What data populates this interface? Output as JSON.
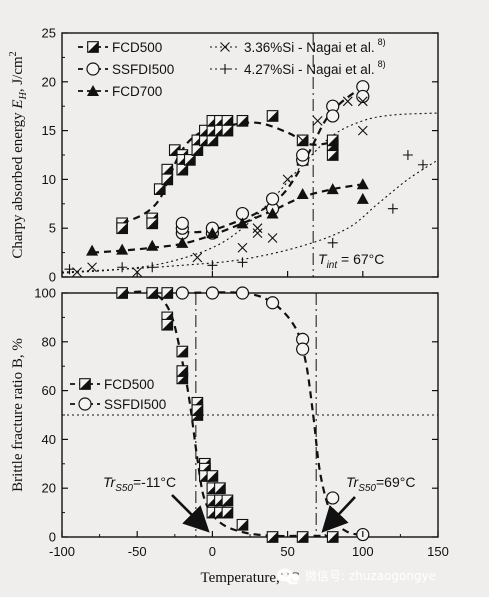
{
  "chart_data": [
    {
      "type": "scatter",
      "xlim": [
        -100,
        150
      ],
      "ylim": [
        0,
        25
      ],
      "yticks": [
        0,
        5,
        10,
        15,
        20,
        25
      ],
      "ylabel_main": "Charpy absorbed energy ",
      "ylabel_sym": "E",
      "ylabel_sub": "H",
      "ylabel_unit": ", J/cm",
      "ylabel_sup": "2",
      "grid": false,
      "legend_position": "top",
      "legend": [
        {
          "label": "FCD500",
          "marker": "halfsquare"
        },
        {
          "label": "SSFDI500",
          "marker": "circle"
        },
        {
          "label": "FCD700",
          "marker": "triangle"
        },
        {
          "label": "3.36%Si - Nagai et al.",
          "marker": "x",
          "ref": "8)"
        },
        {
          "label": "4.27%Si - Nagai et al.",
          "marker": "plus",
          "ref": "8)"
        }
      ],
      "series": [
        {
          "name": "FCD500",
          "marker": "halfsquare",
          "points": [
            [
              -60,
              5.5
            ],
            [
              -60,
              5
            ],
            [
              -40,
              6
            ],
            [
              -40,
              5.5
            ],
            [
              -35,
              9
            ],
            [
              -30,
              11
            ],
            [
              -30,
              10
            ],
            [
              -25,
              13
            ],
            [
              -20,
              12.5
            ],
            [
              -20,
              12
            ],
            [
              -20,
              11
            ],
            [
              -15,
              12
            ],
            [
              -10,
              14
            ],
            [
              -10,
              13
            ],
            [
              -5,
              14
            ],
            [
              -5,
              15
            ],
            [
              0,
              14
            ],
            [
              0,
              15
            ],
            [
              0,
              16
            ],
            [
              5,
              16
            ],
            [
              5,
              15
            ],
            [
              10,
              16
            ],
            [
              10,
              15
            ],
            [
              20,
              16
            ],
            [
              40,
              16.5
            ],
            [
              60,
              14
            ],
            [
              60,
              12
            ],
            [
              80,
              12.5
            ],
            [
              80,
              13.5
            ],
            [
              80,
              14
            ]
          ]
        },
        {
          "name": "SSFDI500",
          "marker": "circle",
          "points": [
            [
              -20,
              4.5
            ],
            [
              -20,
              5
            ],
            [
              -20,
              5.5
            ],
            [
              0,
              4.5
            ],
            [
              0,
              5
            ],
            [
              20,
              6.5
            ],
            [
              40,
              7
            ],
            [
              40,
              8
            ],
            [
              60,
              12
            ],
            [
              60,
              12.5
            ],
            [
              80,
              17.5
            ],
            [
              80,
              16.5
            ],
            [
              100,
              19.5
            ],
            [
              100,
              18.5
            ]
          ]
        },
        {
          "name": "FCD700",
          "marker": "triangle",
          "points": [
            [
              -80,
              2.7
            ],
            [
              -60,
              2.8
            ],
            [
              -40,
              3.2
            ],
            [
              -20,
              3.5
            ],
            [
              0,
              4.5
            ],
            [
              20,
              5.5
            ],
            [
              40,
              6.5
            ],
            [
              60,
              8.5
            ],
            [
              80,
              9
            ],
            [
              100,
              9.5
            ],
            [
              100,
              8
            ]
          ]
        },
        {
          "name": "3.36%Si - Nagai et al.",
          "marker": "x",
          "points": [
            [
              -90,
              0.5
            ],
            [
              -80,
              1
            ],
            [
              -50,
              0.5
            ],
            [
              -10,
              2
            ],
            [
              20,
              3
            ],
            [
              30,
              5
            ],
            [
              30,
              4.5
            ],
            [
              40,
              4
            ],
            [
              50,
              10
            ],
            [
              60,
              14
            ],
            [
              70,
              16
            ],
            [
              90,
              18
            ],
            [
              100,
              18
            ],
            [
              100,
              15
            ]
          ]
        },
        {
          "name": "4.27%Si - Nagai et al.",
          "marker": "plus",
          "points": [
            [
              -95,
              0.8
            ],
            [
              -60,
              1
            ],
            [
              -40,
              1
            ],
            [
              0,
              1.2
            ],
            [
              20,
              1.5
            ],
            [
              80,
              3.5
            ],
            [
              120,
              7
            ],
            [
              130,
              12.5
            ],
            [
              140,
              11.5
            ]
          ]
        }
      ],
      "curves": [
        {
          "name": "FCD500 fit",
          "style": "dashed",
          "points": [
            [
              -60,
              5.5
            ],
            [
              -45,
              6.5
            ],
            [
              -35,
              8
            ],
            [
              -28,
              10.5
            ],
            [
              -22,
              12.5
            ],
            [
              -15,
              14
            ],
            [
              -5,
              15
            ],
            [
              10,
              15.5
            ],
            [
              30,
              15.8
            ],
            [
              50,
              14.8
            ],
            [
              65,
              13.6
            ],
            [
              80,
              13.8
            ]
          ]
        },
        {
          "name": "SSFDI500 fit",
          "style": "dashed",
          "points": [
            [
              -20,
              4.6
            ],
            [
              -10,
              4.6
            ],
            [
              0,
              4.8
            ],
            [
              15,
              5.6
            ],
            [
              30,
              6.6
            ],
            [
              45,
              8.2
            ],
            [
              55,
              10.2
            ],
            [
              65,
              13
            ],
            [
              75,
              16
            ],
            [
              85,
              17.8
            ],
            [
              100,
              19.5
            ]
          ]
        },
        {
          "name": "FCD700 fit",
          "style": "dashed",
          "points": [
            [
              -80,
              2.5
            ],
            [
              -60,
              2.7
            ],
            [
              -40,
              3
            ],
            [
              -20,
              3.4
            ],
            [
              0,
              4.3
            ],
            [
              20,
              5.5
            ],
            [
              40,
              6.8
            ],
            [
              60,
              8.2
            ],
            [
              80,
              9
            ],
            [
              100,
              9.5
            ]
          ]
        },
        {
          "name": "3.36%Si fit",
          "style": "dotted",
          "points": [
            [
              -100,
              0.4
            ],
            [
              -60,
              0.8
            ],
            [
              -30,
              1.5
            ],
            [
              0,
              3
            ],
            [
              20,
              5
            ],
            [
              40,
              8
            ],
            [
              60,
              11.5
            ],
            [
              80,
              14.5
            ],
            [
              100,
              16
            ],
            [
              120,
              16.6
            ],
            [
              150,
              16.8
            ]
          ]
        },
        {
          "name": "4.27%Si fit",
          "style": "dotted",
          "points": [
            [
              -100,
              0.5
            ],
            [
              -60,
              0.8
            ],
            [
              -20,
              1.2
            ],
            [
              20,
              1.8
            ],
            [
              60,
              3.2
            ],
            [
              90,
              5
            ],
            [
              110,
              7.5
            ],
            [
              130,
              10
            ],
            [
              150,
              12
            ]
          ]
        }
      ],
      "reference_lines": [
        {
          "orientation": "vertical",
          "x": 67,
          "style": "dash-dot"
        }
      ],
      "annotations": [
        {
          "prefix": "T",
          "sub": "int",
          "suffix": " = 67°C",
          "x": 67,
          "y": 1.5
        }
      ]
    },
    {
      "type": "scatter",
      "xlim": [
        -100,
        150
      ],
      "ylim": [
        0,
        100
      ],
      "yticks": [
        0,
        20,
        40,
        60,
        80,
        100
      ],
      "xticks": [
        -100,
        -50,
        0,
        50,
        100,
        150
      ],
      "ylabel": "Brittle fracture ratio B, %",
      "xlabel": "Temperature, °C",
      "grid": false,
      "legend_position": "middle-left",
      "legend": [
        {
          "label": "FCD500",
          "marker": "halfsquare"
        },
        {
          "label": "SSFDI500",
          "marker": "circle"
        }
      ],
      "series": [
        {
          "name": "FCD500",
          "marker": "halfsquare",
          "points": [
            [
              -60,
              100
            ],
            [
              -40,
              100
            ],
            [
              -30,
              100
            ],
            [
              -30,
              90
            ],
            [
              -30,
              87
            ],
            [
              -20,
              76
            ],
            [
              -20,
              65
            ],
            [
              -20,
              68
            ],
            [
              -10,
              55
            ],
            [
              -10,
              50
            ],
            [
              -10,
              52
            ],
            [
              -5,
              30
            ],
            [
              -5,
              28
            ],
            [
              -5,
              25
            ],
            [
              0,
              25
            ],
            [
              0,
              20
            ],
            [
              0,
              15
            ],
            [
              0,
              10
            ],
            [
              5,
              20
            ],
            [
              5,
              15
            ],
            [
              5,
              10
            ],
            [
              10,
              15
            ],
            [
              10,
              10
            ],
            [
              20,
              5
            ],
            [
              40,
              0
            ],
            [
              60,
              0
            ],
            [
              80,
              0
            ]
          ]
        },
        {
          "name": "SSFDI500",
          "marker": "circle",
          "points": [
            [
              -20,
              100
            ],
            [
              0,
              100
            ],
            [
              20,
              100
            ],
            [
              40,
              96
            ],
            [
              60,
              81
            ],
            [
              60,
              77
            ],
            [
              80,
              16
            ],
            [
              100,
              1
            ]
          ]
        }
      ],
      "curves": [
        {
          "name": "FCD500 fit",
          "style": "dashed",
          "points": [
            [
              -60,
              100
            ],
            [
              -40,
              100
            ],
            [
              -28,
              92
            ],
            [
              -20,
              72
            ],
            [
              -15,
              55
            ],
            [
              -10,
              32
            ],
            [
              -5,
              15
            ],
            [
              5,
              6
            ],
            [
              20,
              2
            ],
            [
              40,
              0.5
            ],
            [
              60,
              0.5
            ],
            [
              80,
              0.5
            ]
          ]
        },
        {
          "name": "SSFDI500 fit",
          "style": "dashed",
          "points": [
            [
              -20,
              100
            ],
            [
              20,
              100
            ],
            [
              40,
              96
            ],
            [
              55,
              86
            ],
            [
              62,
              72
            ],
            [
              67,
              50
            ],
            [
              72,
              25
            ],
            [
              80,
              8
            ],
            [
              90,
              2
            ],
            [
              100,
              1
            ]
          ]
        }
      ],
      "reference_lines": [
        {
          "orientation": "horizontal",
          "y": 50,
          "style": "dotted"
        },
        {
          "orientation": "vertical",
          "x": -11,
          "style": "dash-dot"
        },
        {
          "orientation": "vertical",
          "x": 69,
          "style": "dash-dot"
        }
      ],
      "annotations": [
        {
          "prefix": "Tr",
          "sub": "S50",
          "suffix": "=-11°C",
          "x": -11
        },
        {
          "prefix": "Tr",
          "sub": "S50",
          "suffix": "=69°C",
          "x": 69
        }
      ]
    }
  ],
  "watermark": {
    "text": "微信号: zhuzaogongye",
    "icon": "wechat-icon"
  }
}
